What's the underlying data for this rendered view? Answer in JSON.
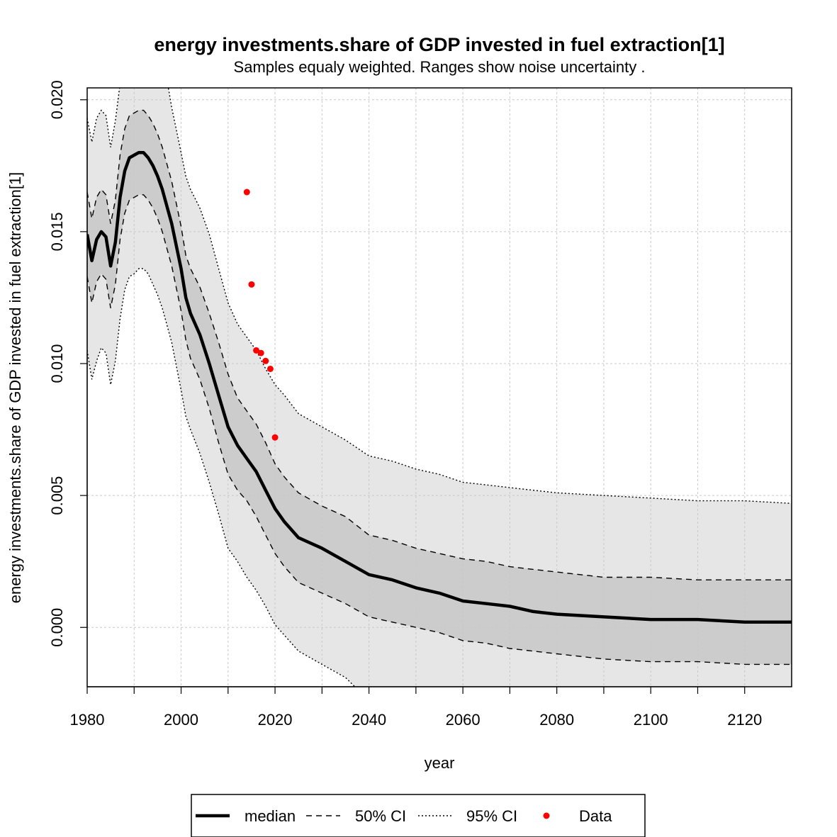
{
  "chart_data": {
    "type": "line",
    "title": "energy investments.share of GDP invested in fuel extraction[1]",
    "subtitle": "Samples equaly weighted. Ranges show  noise uncertainty .",
    "xlabel": "year",
    "ylabel": "energy investments.share of GDP invested in fuel extraction[1]",
    "xlim": [
      1980,
      2130
    ],
    "ylim": [
      -0.00225,
      0.02045
    ],
    "x_ticks": [
      1980,
      2000,
      2020,
      2040,
      2060,
      2080,
      2100,
      2120
    ],
    "x_tick_labels": [
      "1980",
      "2000",
      "2020",
      "2040",
      "2060",
      "2080",
      "2100",
      "2120"
    ],
    "x_grid": [
      1990,
      2000,
      2010,
      2020,
      2030,
      2040,
      2050,
      2060,
      2070,
      2080,
      2090,
      2100,
      2110,
      2120
    ],
    "y_ticks": [
      0.0,
      0.005,
      0.01,
      0.015,
      0.02
    ],
    "y_tick_labels": [
      "0.000",
      "0.005",
      "0.010",
      "0.015",
      "0.020"
    ],
    "grid": true,
    "legend_position": "bottom",
    "series": [
      {
        "name": "median",
        "style": "solid",
        "points": [
          [
            1980,
            0.0149
          ],
          [
            1981,
            0.0139
          ],
          [
            1982,
            0.0147
          ],
          [
            1983,
            0.015
          ],
          [
            1984,
            0.0148
          ],
          [
            1985,
            0.0137
          ],
          [
            1986,
            0.0146
          ],
          [
            1987,
            0.0163
          ],
          [
            1988,
            0.0173
          ],
          [
            1989,
            0.0178
          ],
          [
            1990,
            0.0179
          ],
          [
            1991,
            0.018
          ],
          [
            1992,
            0.018
          ],
          [
            1993,
            0.0178
          ],
          [
            1994,
            0.0175
          ],
          [
            1995,
            0.0171
          ],
          [
            1996,
            0.0166
          ],
          [
            1998,
            0.0153
          ],
          [
            2000,
            0.0136
          ],
          [
            2001,
            0.0125
          ],
          [
            2002,
            0.0119
          ],
          [
            2004,
            0.0111
          ],
          [
            2006,
            0.01
          ],
          [
            2008,
            0.0088
          ],
          [
            2010,
            0.0076
          ],
          [
            2012,
            0.0069
          ],
          [
            2014,
            0.0064
          ],
          [
            2016,
            0.0059
          ],
          [
            2018,
            0.0052
          ],
          [
            2020,
            0.0045
          ],
          [
            2022,
            0.004
          ],
          [
            2025,
            0.0034
          ],
          [
            2030,
            0.003
          ],
          [
            2035,
            0.0025
          ],
          [
            2040,
            0.002
          ],
          [
            2045,
            0.0018
          ],
          [
            2050,
            0.0015
          ],
          [
            2055,
            0.0013
          ],
          [
            2060,
            0.001
          ],
          [
            2065,
            0.0009
          ],
          [
            2070,
            0.0008
          ],
          [
            2075,
            0.0006
          ],
          [
            2080,
            0.0005
          ],
          [
            2090,
            0.0004
          ],
          [
            2100,
            0.0003
          ],
          [
            2110,
            0.0003
          ],
          [
            2120,
            0.0002
          ],
          [
            2130,
            0.0002
          ]
        ]
      },
      {
        "name": "50% CI",
        "style": "dashed",
        "upper": [
          [
            1980,
            0.0165
          ],
          [
            1981,
            0.0155
          ],
          [
            1982,
            0.0163
          ],
          [
            1983,
            0.0166
          ],
          [
            1984,
            0.0164
          ],
          [
            1985,
            0.0153
          ],
          [
            1986,
            0.0162
          ],
          [
            1987,
            0.0179
          ],
          [
            1988,
            0.0189
          ],
          [
            1989,
            0.0194
          ],
          [
            1990,
            0.0195
          ],
          [
            1991,
            0.0196
          ],
          [
            1992,
            0.0196
          ],
          [
            1993,
            0.0194
          ],
          [
            1994,
            0.0191
          ],
          [
            1995,
            0.0187
          ],
          [
            1996,
            0.0182
          ],
          [
            1998,
            0.0169
          ],
          [
            2000,
            0.0152
          ],
          [
            2001,
            0.0141
          ],
          [
            2002,
            0.0136
          ],
          [
            2004,
            0.0129
          ],
          [
            2006,
            0.0119
          ],
          [
            2008,
            0.0108
          ],
          [
            2010,
            0.0096
          ],
          [
            2012,
            0.0087
          ],
          [
            2014,
            0.0082
          ],
          [
            2016,
            0.0077
          ],
          [
            2018,
            0.007
          ],
          [
            2020,
            0.0062
          ],
          [
            2022,
            0.0057
          ],
          [
            2025,
            0.0051
          ],
          [
            2030,
            0.0046
          ],
          [
            2035,
            0.0042
          ],
          [
            2040,
            0.0035
          ],
          [
            2045,
            0.0033
          ],
          [
            2050,
            0.003
          ],
          [
            2055,
            0.0028
          ],
          [
            2060,
            0.0026
          ],
          [
            2065,
            0.0025
          ],
          [
            2070,
            0.0023
          ],
          [
            2075,
            0.0022
          ],
          [
            2080,
            0.0021
          ],
          [
            2090,
            0.0019
          ],
          [
            2100,
            0.0019
          ],
          [
            2110,
            0.0018
          ],
          [
            2120,
            0.0018
          ],
          [
            2130,
            0.0018
          ]
        ],
        "lower": [
          [
            1980,
            0.0133
          ],
          [
            1981,
            0.0123
          ],
          [
            1982,
            0.0131
          ],
          [
            1983,
            0.0134
          ],
          [
            1984,
            0.0132
          ],
          [
            1985,
            0.0121
          ],
          [
            1986,
            0.013
          ],
          [
            1987,
            0.0147
          ],
          [
            1988,
            0.0157
          ],
          [
            1989,
            0.0162
          ],
          [
            1990,
            0.0163
          ],
          [
            1991,
            0.0164
          ],
          [
            1992,
            0.0164
          ],
          [
            1993,
            0.0162
          ],
          [
            1994,
            0.0159
          ],
          [
            1995,
            0.0155
          ],
          [
            1996,
            0.015
          ],
          [
            1998,
            0.0137
          ],
          [
            2000,
            0.012
          ],
          [
            2001,
            0.0109
          ],
          [
            2002,
            0.0102
          ],
          [
            2004,
            0.0094
          ],
          [
            2006,
            0.0083
          ],
          [
            2008,
            0.007
          ],
          [
            2010,
            0.0058
          ],
          [
            2012,
            0.0052
          ],
          [
            2014,
            0.0048
          ],
          [
            2016,
            0.0042
          ],
          [
            2018,
            0.0035
          ],
          [
            2020,
            0.0028
          ],
          [
            2022,
            0.0023
          ],
          [
            2025,
            0.0017
          ],
          [
            2030,
            0.0013
          ],
          [
            2035,
            0.0009
          ],
          [
            2040,
            0.0004
          ],
          [
            2045,
            0.0002
          ],
          [
            2050,
            0.0
          ],
          [
            2055,
            -0.0002
          ],
          [
            2060,
            -0.0005
          ],
          [
            2065,
            -0.0006
          ],
          [
            2070,
            -0.0008
          ],
          [
            2075,
            -0.0009
          ],
          [
            2080,
            -0.001
          ],
          [
            2090,
            -0.0012
          ],
          [
            2100,
            -0.0013
          ],
          [
            2110,
            -0.0013
          ],
          [
            2120,
            -0.0014
          ],
          [
            2130,
            -0.0014
          ]
        ]
      },
      {
        "name": "95% CI",
        "style": "dotted",
        "upper": [
          [
            1980,
            0.0193
          ],
          [
            1981,
            0.0184
          ],
          [
            1982,
            0.0193
          ],
          [
            1983,
            0.0196
          ],
          [
            1984,
            0.0194
          ],
          [
            1985,
            0.0182
          ],
          [
            1986,
            0.0192
          ],
          [
            1987,
            0.0206
          ],
          [
            1988,
            0.0218
          ],
          [
            1992,
            0.0228
          ],
          [
            1996,
            0.0218
          ],
          [
            1998,
            0.0197
          ],
          [
            2000,
            0.018
          ],
          [
            2001,
            0.0171
          ],
          [
            2002,
            0.0166
          ],
          [
            2004,
            0.0159
          ],
          [
            2006,
            0.0149
          ],
          [
            2008,
            0.0136
          ],
          [
            2010,
            0.0123
          ],
          [
            2012,
            0.0115
          ],
          [
            2014,
            0.011
          ],
          [
            2016,
            0.0105
          ],
          [
            2018,
            0.0098
          ],
          [
            2020,
            0.0092
          ],
          [
            2022,
            0.0088
          ],
          [
            2025,
            0.0081
          ],
          [
            2030,
            0.0076
          ],
          [
            2035,
            0.0071
          ],
          [
            2040,
            0.0065
          ],
          [
            2045,
            0.0063
          ],
          [
            2050,
            0.006
          ],
          [
            2055,
            0.0058
          ],
          [
            2060,
            0.0055
          ],
          [
            2065,
            0.0054
          ],
          [
            2070,
            0.0053
          ],
          [
            2075,
            0.0052
          ],
          [
            2080,
            0.0051
          ],
          [
            2090,
            0.005
          ],
          [
            2100,
            0.0049
          ],
          [
            2110,
            0.0048
          ],
          [
            2120,
            0.0048
          ],
          [
            2130,
            0.0047
          ]
        ],
        "lower": [
          [
            1980,
            0.0105
          ],
          [
            1981,
            0.0094
          ],
          [
            1982,
            0.0101
          ],
          [
            1983,
            0.0106
          ],
          [
            1984,
            0.0104
          ],
          [
            1985,
            0.0092
          ],
          [
            1986,
            0.0101
          ],
          [
            1987,
            0.0117
          ],
          [
            1988,
            0.0128
          ],
          [
            1989,
            0.0133
          ],
          [
            1990,
            0.0134
          ],
          [
            1991,
            0.0136
          ],
          [
            1992,
            0.0136
          ],
          [
            1993,
            0.0134
          ],
          [
            1994,
            0.013
          ],
          [
            1995,
            0.0126
          ],
          [
            1996,
            0.0121
          ],
          [
            1998,
            0.0108
          ],
          [
            2000,
            0.009
          ],
          [
            2001,
            0.008
          ],
          [
            2002,
            0.0075
          ],
          [
            2004,
            0.0066
          ],
          [
            2006,
            0.0055
          ],
          [
            2008,
            0.0043
          ],
          [
            2010,
            0.003
          ],
          [
            2012,
            0.0025
          ],
          [
            2014,
            0.0019
          ],
          [
            2016,
            0.0014
          ],
          [
            2018,
            0.0008
          ],
          [
            2020,
            0.0001
          ],
          [
            2022,
            -0.0003
          ],
          [
            2025,
            -0.0009
          ],
          [
            2030,
            -0.0014
          ],
          [
            2035,
            -0.0019
          ],
          [
            2037,
            -0.00225
          ]
        ]
      },
      {
        "name": "Data",
        "style": "points",
        "points": [
          [
            2014,
            0.0165
          ],
          [
            2015,
            0.013
          ],
          [
            2016,
            0.0105
          ],
          [
            2017,
            0.0104
          ],
          [
            2018,
            0.0101
          ],
          [
            2019,
            0.0098
          ],
          [
            2020,
            0.0072
          ]
        ]
      }
    ],
    "colors": {
      "median": "#000000",
      "band50": "#cccccc",
      "band95": "#e6e6e6",
      "data": "#ff0000",
      "grid": "#c8c8c8"
    }
  }
}
